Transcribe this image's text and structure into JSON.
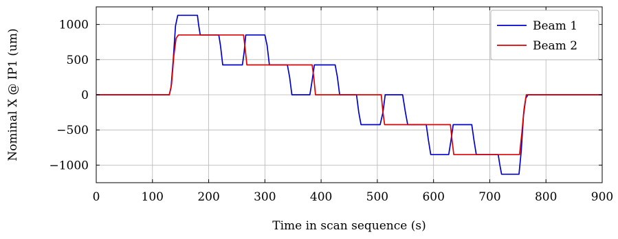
{
  "chart_data": {
    "type": "line",
    "xlabel": "Time in scan sequence (s)",
    "ylabel": "Nominal X @ IP1 (um)",
    "xlim": [
      0,
      900
    ],
    "ylim": [
      -1250,
      1250
    ],
    "xticks": [
      0,
      100,
      200,
      300,
      400,
      500,
      600,
      700,
      800,
      900
    ],
    "xtick_labels": [
      "0",
      "100",
      "200",
      "300",
      "400",
      "500",
      "600",
      "700",
      "800",
      "900"
    ],
    "yticks": [
      -1000,
      -500,
      0,
      500,
      1000
    ],
    "ytick_labels": [
      "−1000",
      "−500",
      "0",
      "500",
      "1000"
    ],
    "grid": true,
    "legend_position": "top-right",
    "series": [
      {
        "name": "Beam 1",
        "color": "#0000cc",
        "points": [
          [
            0,
            0
          ],
          [
            130,
            0
          ],
          [
            133,
            100
          ],
          [
            137,
            500
          ],
          [
            141,
            980
          ],
          [
            145,
            1130
          ],
          [
            180,
            1130
          ],
          [
            182,
            1000
          ],
          [
            185,
            850
          ],
          [
            218,
            850
          ],
          [
            221,
            700
          ],
          [
            225,
            425
          ],
          [
            260,
            425
          ],
          [
            263,
            600
          ],
          [
            266,
            850
          ],
          [
            300,
            850
          ],
          [
            304,
            700
          ],
          [
            308,
            425
          ],
          [
            340,
            425
          ],
          [
            344,
            250
          ],
          [
            348,
            0
          ],
          [
            380,
            0
          ],
          [
            384,
            200
          ],
          [
            388,
            425
          ],
          [
            425,
            425
          ],
          [
            429,
            250
          ],
          [
            433,
            0
          ],
          [
            463,
            0
          ],
          [
            467,
            -250
          ],
          [
            471,
            -425
          ],
          [
            505,
            -425
          ],
          [
            510,
            -250
          ],
          [
            514,
            0
          ],
          [
            545,
            0
          ],
          [
            550,
            -250
          ],
          [
            554,
            -425
          ],
          [
            587,
            -425
          ],
          [
            591,
            -650
          ],
          [
            595,
            -850
          ],
          [
            627,
            -850
          ],
          [
            631,
            -650
          ],
          [
            635,
            -425
          ],
          [
            668,
            -425
          ],
          [
            672,
            -650
          ],
          [
            676,
            -850
          ],
          [
            715,
            -850
          ],
          [
            718,
            -1000
          ],
          [
            721,
            -1130
          ],
          [
            752,
            -1130
          ],
          [
            756,
            -800
          ],
          [
            760,
            -300
          ],
          [
            764,
            -50
          ],
          [
            768,
            0
          ],
          [
            900,
            0
          ]
        ]
      },
      {
        "name": "Beam 2",
        "color": "#dd0000",
        "points": [
          [
            0,
            0
          ],
          [
            130,
            0
          ],
          [
            134,
            150
          ],
          [
            138,
            550
          ],
          [
            142,
            800
          ],
          [
            146,
            850
          ],
          [
            262,
            850
          ],
          [
            265,
            650
          ],
          [
            268,
            425
          ],
          [
            384,
            425
          ],
          [
            387,
            250
          ],
          [
            390,
            0
          ],
          [
            507,
            0
          ],
          [
            510,
            -250
          ],
          [
            513,
            -425
          ],
          [
            630,
            -425
          ],
          [
            633,
            -650
          ],
          [
            636,
            -850
          ],
          [
            753,
            -850
          ],
          [
            757,
            -550
          ],
          [
            761,
            -200
          ],
          [
            765,
            0
          ],
          [
            900,
            0
          ]
        ]
      }
    ]
  }
}
